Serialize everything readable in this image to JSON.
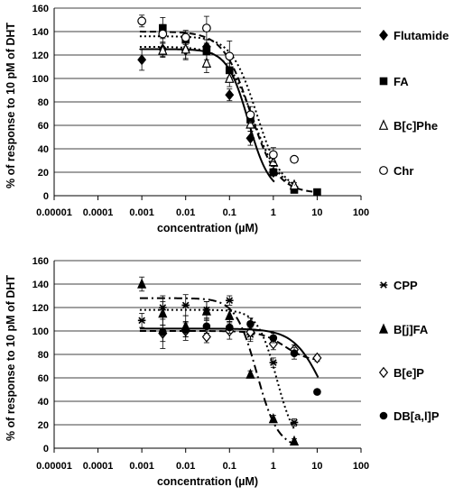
{
  "chart_data": [
    {
      "type": "scatter",
      "xlabel": "concentration (µM)",
      "ylabel": "% of response to 10 pM of DHT",
      "xscale": "log",
      "xlim": [
        1e-05,
        100
      ],
      "ylim": [
        0,
        160
      ],
      "xticks": [
        "0.00001",
        "0.0001",
        "0.001",
        "0.01",
        "0.1",
        "1",
        "10",
        "100"
      ],
      "yticks": [
        "0",
        "20",
        "40",
        "60",
        "80",
        "100",
        "120",
        "140",
        "160"
      ],
      "grid": true,
      "legend_position": "right",
      "series": [
        {
          "name": "Flutamide",
          "marker": "diamond-filled",
          "line": "solid",
          "x": [
            0.001,
            0.003,
            0.01,
            0.03,
            0.1,
            0.3,
            1
          ],
          "y": [
            116,
            125,
            124,
            127,
            86,
            49,
            20
          ],
          "err": [
            9,
            6,
            8,
            6,
            5,
            6,
            3
          ],
          "fit": {
            "top": 125,
            "bottom": 2,
            "ec50": 0.27,
            "hill": 1.8
          }
        },
        {
          "name": "FA",
          "marker": "square-filled",
          "line": "dash",
          "x": [
            0.003,
            0.01,
            0.03,
            0.1,
            0.3,
            1,
            3,
            10
          ],
          "y": [
            143,
            133,
            123,
            107,
            65,
            20,
            5,
            3
          ],
          "err": [
            9,
            6,
            7,
            6,
            6,
            3,
            2,
            1
          ],
          "fit": {
            "top": 140,
            "bottom": 2,
            "ec50": 0.3,
            "hill": 1.4
          }
        },
        {
          "name": "B[c]Phe",
          "marker": "triangle-open",
          "line": "dot",
          "x": [
            0.003,
            0.01,
            0.03,
            0.1,
            0.3,
            1,
            3
          ],
          "y": [
            124,
            125,
            113,
            100,
            61,
            29,
            9
          ],
          "err": [
            6,
            8,
            8,
            7,
            6,
            4,
            2
          ],
          "fit": {
            "top": 127,
            "bottom": 3,
            "ec50": 0.35,
            "hill": 1.4
          }
        },
        {
          "name": "Chr",
          "marker": "circle-open",
          "line": "dot",
          "x": [
            0.001,
            0.003,
            0.01,
            0.03,
            0.1,
            0.3,
            1,
            3
          ],
          "y": [
            149,
            138,
            135,
            143,
            119,
            69,
            35,
            31
          ],
          "err": [
            5,
            8,
            6,
            10,
            13,
            7,
            6,
            2
          ],
          "fit": {
            "top": 136,
            "bottom": 3,
            "ec50": 0.42,
            "hill": 1.5
          }
        }
      ]
    },
    {
      "type": "scatter",
      "xlabel": "concentration (µM)",
      "ylabel": "% of response to 10 pM of DHT",
      "xscale": "log",
      "xlim": [
        1e-05,
        100
      ],
      "ylim": [
        0,
        160
      ],
      "xticks": [
        "0.00001",
        "0.0001",
        "0.001",
        "0.01",
        "0.1",
        "1",
        "10",
        "100"
      ],
      "yticks": [
        "0",
        "20",
        "40",
        "60",
        "80",
        "100",
        "120",
        "140",
        "160"
      ],
      "grid": true,
      "legend_position": "right",
      "series": [
        {
          "name": "CPP",
          "marker": "star",
          "line": "dot",
          "x": [
            0.001,
            0.003,
            0.01,
            0.03,
            0.1,
            0.3,
            1,
            3
          ],
          "y": [
            109,
            120,
            122,
            118,
            126,
            97,
            73,
            22
          ],
          "err": [
            6,
            10,
            9,
            7,
            4,
            6,
            4,
            3
          ],
          "fit": {
            "top": 118,
            "bottom": 0,
            "ec50": 1.2,
            "hill": 2.0
          }
        },
        {
          "name": "B[j]FA",
          "marker": "triangle-filled",
          "line": "dashdot",
          "x": [
            0.001,
            0.003,
            0.01,
            0.03,
            0.1,
            0.3,
            1,
            3
          ],
          "y": [
            140,
            115,
            104,
            117,
            113,
            63,
            25,
            6
          ],
          "err": [
            6,
            10,
            9,
            8,
            5,
            3,
            3,
            2
          ],
          "fit": {
            "top": 128,
            "bottom": 0,
            "ec50": 0.42,
            "hill": 1.8
          }
        },
        {
          "name": "B[e]P",
          "marker": "diamond-open",
          "line": "dash",
          "x": [
            0.003,
            0.01,
            0.03,
            0.1,
            0.3,
            1,
            3,
            10
          ],
          "y": [
            98,
            100,
            95,
            100,
            99,
            89,
            84,
            77
          ],
          "err": [
            7,
            8,
            5,
            7,
            6,
            5,
            4,
            3
          ],
          "fit": {
            "top": 100,
            "bottom": 74,
            "ec50": 1.8,
            "hill": 1.6
          }
        },
        {
          "name": "DB[a,l]P",
          "marker": "circle-filled",
          "line": "solid",
          "x": [
            0.003,
            0.01,
            0.03,
            0.1,
            0.3,
            1,
            3,
            10
          ],
          "y": [
            99,
            101,
            104,
            103,
            106,
            94,
            81,
            48
          ],
          "err": [
            14,
            6,
            6,
            5,
            5,
            4,
            5,
            2
          ],
          "fit": {
            "top": 102,
            "bottom": 0,
            "ec50": 14,
            "hill": 1.3
          }
        }
      ]
    }
  ]
}
